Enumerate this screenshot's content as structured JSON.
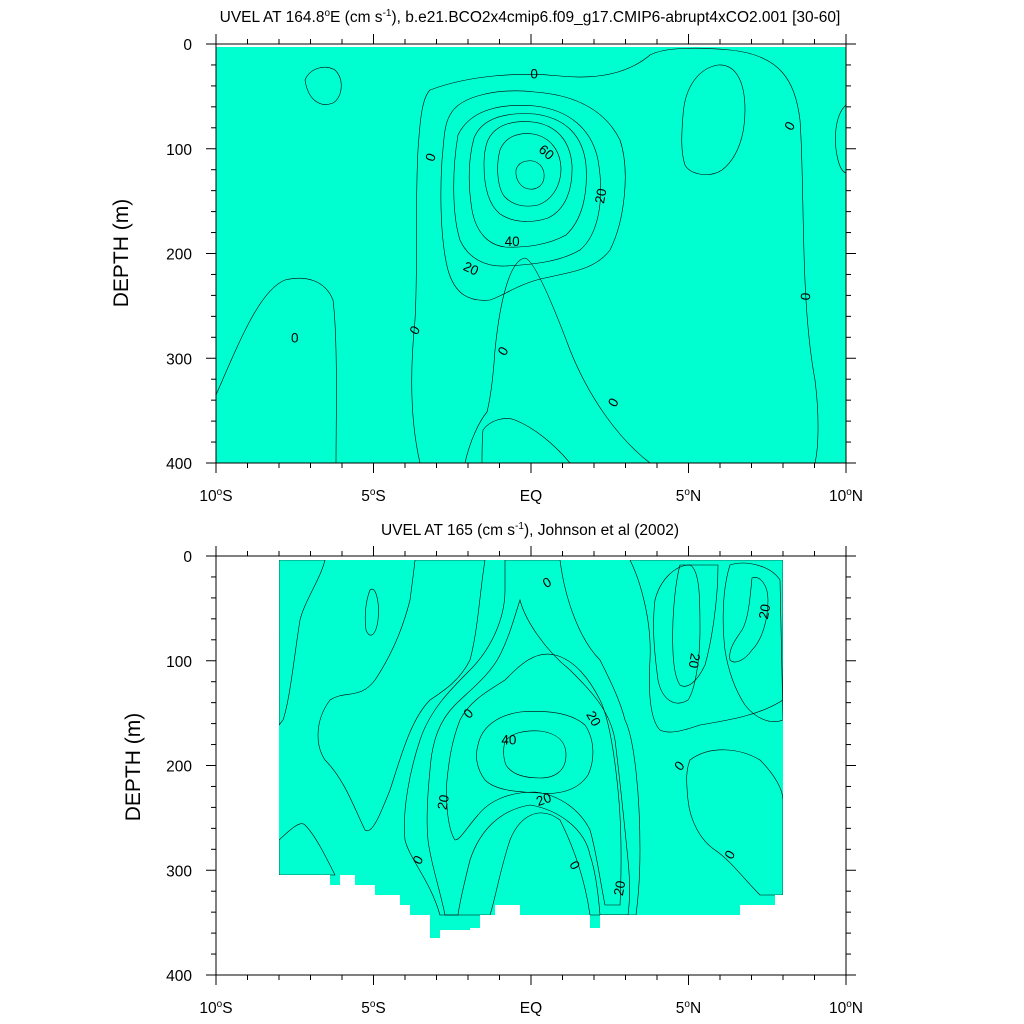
{
  "colors": {
    "level_neg20_0": "#00ffd0",
    "level_neg40_neg20": "#00ffff",
    "level_0_10": "#33ff66",
    "level_10_20": "#55ff00",
    "level_20_30": "#ffff00",
    "level_30_40": "#ffdd44",
    "level_40_50": "#ffbb33",
    "level_50_60": "#ff9922",
    "level_60_70": "#ff5511",
    "contour": "#000000"
  },
  "chart_data": [
    {
      "type": "contour",
      "title_main": "UVEL AT 164.8",
      "title_deg": "o",
      "title_mid": "E (cm s",
      "title_exp": "-1",
      "title_rest": "), b.e21.BCO2x4cmip6.f09_g17.CMIP6-abrupt4xCO2.001 [30-60]",
      "ylabel": "DEPTH (m)",
      "xlim": [
        -10,
        10
      ],
      "ylim": [
        400,
        0
      ],
      "x_ticks": [
        {
          "value": -10,
          "num": "10",
          "deg": "o",
          "hem": "S"
        },
        {
          "value": -5,
          "num": "5",
          "deg": "o",
          "hem": "S"
        },
        {
          "value": 0,
          "num": "EQ",
          "deg": "",
          "hem": ""
        },
        {
          "value": 5,
          "num": "5",
          "deg": "o",
          "hem": "N"
        },
        {
          "value": 10,
          "num": "10",
          "deg": "o",
          "hem": "N"
        }
      ],
      "y_ticks": [
        {
          "value": 0,
          "label": "0"
        },
        {
          "value": 100,
          "label": "100"
        },
        {
          "value": 200,
          "label": "200"
        },
        {
          "value": 300,
          "label": "300"
        },
        {
          "value": 400,
          "label": "400"
        }
      ],
      "core_max": {
        "lat": 0,
        "depth": 125
      },
      "contour_labels": [
        {
          "text": "0",
          "lat": 0.1,
          "depth": 28,
          "rotate": 0
        },
        {
          "text": "0",
          "lat": -3.2,
          "depth": 108,
          "rotate": -70
        },
        {
          "text": "0",
          "lat": 8.2,
          "depth": 78,
          "rotate": -60
        },
        {
          "text": "0",
          "lat": -7.5,
          "depth": 280,
          "rotate": 0
        },
        {
          "text": "0",
          "lat": -3.7,
          "depth": 273,
          "rotate": -60
        },
        {
          "text": "0",
          "lat": -0.9,
          "depth": 293,
          "rotate": -60
        },
        {
          "text": "0",
          "lat": 2.6,
          "depth": 342,
          "rotate": -60
        },
        {
          "text": "0",
          "lat": 8.7,
          "depth": 241,
          "rotate": -85
        },
        {
          "text": "60",
          "lat": 0.5,
          "depth": 103,
          "rotate": 40
        },
        {
          "text": "40",
          "lat": -0.6,
          "depth": 188,
          "rotate": 0
        },
        {
          "text": "20",
          "lat": 2.2,
          "depth": 145,
          "rotate": -80
        },
        {
          "text": "20",
          "lat": -1.9,
          "depth": 214,
          "rotate": 25
        }
      ]
    },
    {
      "type": "contour",
      "title_main": "UVEL AT 165 (cm s",
      "title_exp": "-1",
      "title_rest": "), Johnson et al (2002)",
      "ylabel": "DEPTH (m)",
      "xlim": [
        -10,
        10
      ],
      "ylim": [
        400,
        0
      ],
      "x_ticks": [
        {
          "value": -10,
          "num": "10",
          "deg": "o",
          "hem": "S"
        },
        {
          "value": -5,
          "num": "5",
          "deg": "o",
          "hem": "S"
        },
        {
          "value": 0,
          "num": "EQ",
          "deg": "",
          "hem": ""
        },
        {
          "value": 5,
          "num": "5",
          "deg": "o",
          "hem": "N"
        },
        {
          "value": 10,
          "num": "10",
          "deg": "o",
          "hem": "N"
        }
      ],
      "y_ticks": [
        {
          "value": 0,
          "label": "0"
        },
        {
          "value": 100,
          "label": "100"
        },
        {
          "value": 200,
          "label": "200"
        },
        {
          "value": 300,
          "label": "300"
        },
        {
          "value": 400,
          "label": "400"
        }
      ],
      "contour_labels": [
        {
          "text": "0",
          "lat": 0.5,
          "depth": 25,
          "rotate": -30
        },
        {
          "text": "0",
          "lat": -2.0,
          "depth": 150,
          "rotate": -45
        },
        {
          "text": "40",
          "lat": -0.7,
          "depth": 175,
          "rotate": 0
        },
        {
          "text": "20",
          "lat": 2.0,
          "depth": 155,
          "rotate": 60
        },
        {
          "text": "20",
          "lat": -2.8,
          "depth": 235,
          "rotate": -80
        },
        {
          "text": "20",
          "lat": 0.4,
          "depth": 232,
          "rotate": -20
        },
        {
          "text": "0",
          "lat": -3.6,
          "depth": 290,
          "rotate": -60
        },
        {
          "text": "0",
          "lat": 1.4,
          "depth": 295,
          "rotate": 60
        },
        {
          "text": "20",
          "lat": 2.8,
          "depth": 317,
          "rotate": -80
        },
        {
          "text": "0",
          "lat": 4.7,
          "depth": 200,
          "rotate": -50
        },
        {
          "text": "0",
          "lat": 6.3,
          "depth": 285,
          "rotate": -60
        },
        {
          "text": "20",
          "lat": 5.2,
          "depth": 100,
          "rotate": 100
        },
        {
          "text": "20",
          "lat": 7.4,
          "depth": 53,
          "rotate": -80
        }
      ]
    }
  ]
}
